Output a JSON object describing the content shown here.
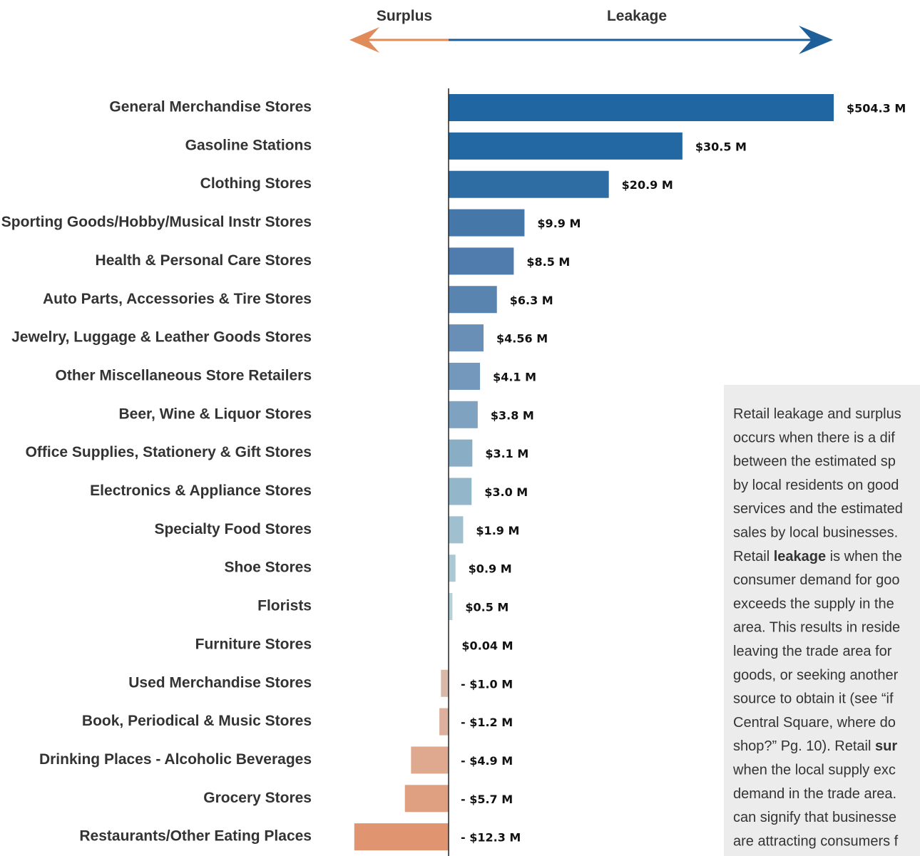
{
  "chart_data": {
    "type": "diverging-bar",
    "left_label": "Surplus",
    "right_label": "Leakage",
    "left_color": "#e08b5a",
    "right_color": "#1f5f99",
    "categories": [
      "General Merchandise Stores",
      "Gasoline Stations",
      "Clothing Stores",
      "Sporting Goods/Hobby/Musical Instr Stores",
      "Health & Personal Care Stores",
      "Auto Parts, Accessories & Tire Stores",
      "Jewelry, Luggage & Leather Goods Stores",
      "Other Miscellaneous Store Retailers",
      "Beer, Wine & Liquor Stores",
      "Office Supplies, Stationery & Gift Stores",
      "Electronics & Appliance Stores",
      "Specialty Food Stores",
      "Shoe Stores",
      "Florists",
      "Furniture Stores",
      "Used Merchandise Stores",
      "Book, Periodical & Music Stores",
      "Drinking Places - Alcoholic Beverages",
      "Grocery Stores",
      "Restaurants/Other Eating Places"
    ],
    "values": [
      504.3,
      30.5,
      20.9,
      9.9,
      8.5,
      6.3,
      4.56,
      4.1,
      3.8,
      3.1,
      3.0,
      1.9,
      0.9,
      0.5,
      0.04,
      -1.0,
      -1.2,
      -4.9,
      -5.7,
      -12.3
    ],
    "value_labels": [
      "$504.3 M",
      "$30.5 M",
      "$20.9 M",
      "$9.9 M",
      "$8.5 M",
      "$6.3 M",
      "$4.56 M",
      "$4.1 M",
      "$3.8 M",
      "$3.1 M",
      "$3.0 M",
      "$1.9 M",
      "$0.9 M",
      "$0.5 M",
      "$0.04 M",
      "- $1.0 M",
      "- $1.2 M",
      "- $4.9 M",
      "- $5.7 M",
      "- $12.3 M"
    ],
    "colors": [
      "#1f66a3",
      "#2468a3",
      "#2e6ca4",
      "#4677a9",
      "#4f7cac",
      "#5a84b0",
      "#6a8fb6",
      "#7398bb",
      "#7ea2c0",
      "#8aadc6",
      "#93b6cb",
      "#a0c0cf",
      "#acc9d3",
      "#b5d1d7",
      "#bcd6da",
      "#d9b8a8",
      "#dcb09c",
      "#dea98f",
      "#df9f81",
      "#e09570"
    ],
    "note_lines": [
      [
        "Retail leakage and surplus"
      ],
      [
        "occurs when there is a dif"
      ],
      [
        "between the estimated sp"
      ],
      [
        "by local residents on good"
      ],
      [
        "services and the estimated"
      ],
      [
        "sales by local businesses."
      ],
      [
        "Retail ",
        "leakage",
        " is when the"
      ],
      [
        "consumer demand for goo"
      ],
      [
        "exceeds the supply in the"
      ],
      [
        "area. This results in reside"
      ],
      [
        "leaving the trade area for"
      ],
      [
        "goods, or seeking another"
      ],
      [
        "source to obtain it (see “if"
      ],
      [
        "Central Square, where do"
      ],
      [
        "shop?” Pg. 10). Retail ",
        "sur"
      ],
      [
        "when the local supply exc"
      ],
      [
        "demand in the trade area."
      ],
      [
        "can signify that businesse"
      ],
      [
        "are attracting consumers f"
      ]
    ]
  }
}
